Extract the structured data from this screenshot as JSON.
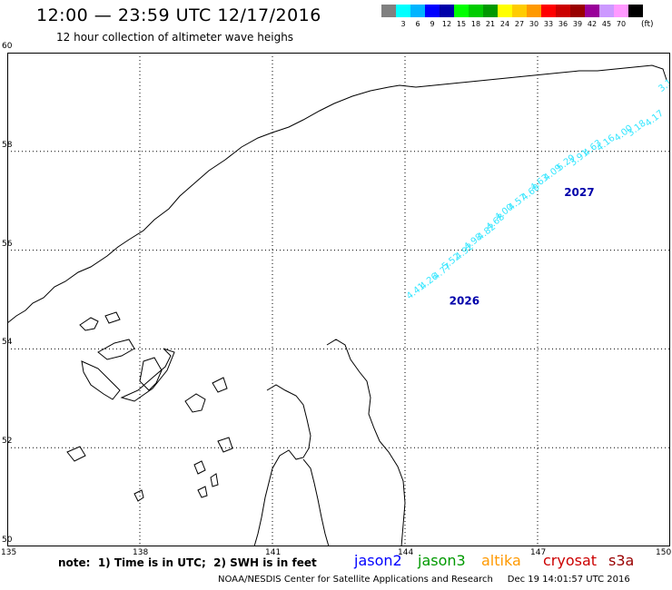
{
  "header": {
    "title": "12:00 — 23:59 UTC 12/17/2016",
    "subtitle": "12 hour collection of altimeter wave heighs"
  },
  "colorbar": {
    "unit": "(ft)",
    "swatches": [
      {
        "label": "",
        "color": "#808080"
      },
      {
        "label": "3",
        "color": "#00ffff"
      },
      {
        "label": "6",
        "color": "#00b4ff"
      },
      {
        "label": "9",
        "color": "#0000ff"
      },
      {
        "label": "12",
        "color": "#0000aa"
      },
      {
        "label": "15",
        "color": "#00ff00"
      },
      {
        "label": "18",
        "color": "#00cc00"
      },
      {
        "label": "21",
        "color": "#009900"
      },
      {
        "label": "24",
        "color": "#ffff00"
      },
      {
        "label": "27",
        "color": "#ffcc00"
      },
      {
        "label": "30",
        "color": "#ff9900"
      },
      {
        "label": "33",
        "color": "#ff0000"
      },
      {
        "label": "36",
        "color": "#cc0000"
      },
      {
        "label": "39",
        "color": "#990000"
      },
      {
        "label": "42",
        "color": "#990099"
      },
      {
        "label": "45",
        "color": "#cc99ff"
      },
      {
        "label": "70",
        "color": "#ff99ff"
      },
      {
        "label": "",
        "color": "#000000"
      }
    ]
  },
  "map": {
    "lon_ticks": [
      "135",
      "138",
      "141",
      "144",
      "147",
      "150"
    ],
    "lat_ticks": [
      "60",
      "58",
      "56",
      "54",
      "52",
      "50"
    ],
    "lon_range": [
      135,
      150
    ],
    "lat_range": [
      50,
      60
    ],
    "track_color": "#33e6ff",
    "pass_label_color": "#0000aa",
    "passes": [
      {
        "id": "2026",
        "lon": 145.0,
        "lat": 54.9
      },
      {
        "id": "2027",
        "lon": 147.6,
        "lat": 57.1
      }
    ],
    "track_points": [
      {
        "lon": 144.1,
        "lat": 55.0,
        "v": "4.41"
      },
      {
        "lon": 144.4,
        "lat": 55.2,
        "v": "4.26"
      },
      {
        "lon": 144.7,
        "lat": 55.4,
        "v": "4.77"
      },
      {
        "lon": 144.9,
        "lat": 55.6,
        "v": "5.52"
      },
      {
        "lon": 145.2,
        "lat": 55.8,
        "v": "4.92"
      },
      {
        "lon": 145.4,
        "lat": 56.0,
        "v": "4.98"
      },
      {
        "lon": 145.7,
        "lat": 56.2,
        "v": "4.82"
      },
      {
        "lon": 145.9,
        "lat": 56.4,
        "v": "4.68"
      },
      {
        "lon": 146.1,
        "lat": 56.6,
        "v": "4.00"
      },
      {
        "lon": 146.4,
        "lat": 56.8,
        "v": "4.57"
      },
      {
        "lon": 146.7,
        "lat": 57.0,
        "v": "4.60"
      },
      {
        "lon": 146.9,
        "lat": 57.2,
        "v": "4.63"
      },
      {
        "lon": 147.2,
        "lat": 57.4,
        "v": "4.09"
      },
      {
        "lon": 147.5,
        "lat": 57.6,
        "v": "5.29"
      },
      {
        "lon": 147.8,
        "lat": 57.7,
        "v": "3.91"
      },
      {
        "lon": 148.1,
        "lat": 57.9,
        "v": "4.63"
      },
      {
        "lon": 148.4,
        "lat": 58.0,
        "v": "4.16"
      },
      {
        "lon": 148.8,
        "lat": 58.2,
        "v": "4.00"
      },
      {
        "lon": 149.1,
        "lat": 58.3,
        "v": "3.18"
      },
      {
        "lon": 149.5,
        "lat": 58.5,
        "v": "4.17"
      },
      {
        "lon": 149.8,
        "lat": 59.2,
        "v": "3.1"
      }
    ]
  },
  "footer": {
    "note": "note:  1) Time is in UTC;  2) SWH is in feet",
    "satellites": [
      {
        "name": "jason2",
        "color": "#0000ff"
      },
      {
        "name": "jason3",
        "color": "#009900"
      },
      {
        "name": "altika",
        "color": "#ff9900"
      },
      {
        "name": "cryosat",
        "color": "#cc0000"
      },
      {
        "name": "s3a",
        "color": "#990000"
      }
    ],
    "credit": "NOAA/NESDIS Center for Satellite Applications and Research     Dec 19 14:01:57 UTC 2016"
  }
}
